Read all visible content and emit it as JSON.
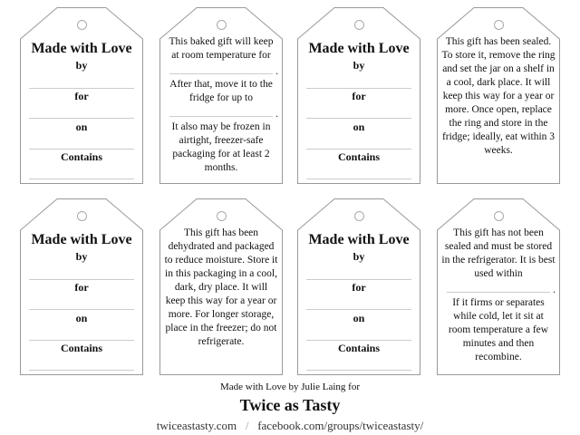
{
  "tags": {
    "love": {
      "title": "Made with Love",
      "by": "by",
      "for": "for",
      "on": "on",
      "contains": "Contains"
    },
    "baked": {
      "p1": "This baked gift will keep at room temperature for",
      "p2": "After that, move it to the fridge for up to",
      "p3": "It also may be frozen in airtight, freezer-safe packaging for at least 2 months.",
      "period": "."
    },
    "sealed": {
      "p1": "This gift has been sealed. To store it, remove the ring and set the jar on a shelf in a cool, dark place. It will keep this way for a year or more. Once open, replace the ring and store in the fridge; ideally, eat within 3 weeks."
    },
    "dehydrated": {
      "p1": "This gift has been dehydrated and packaged to reduce moisture. Store it in this packaging in a cool, dark, dry place. It will keep this way for a year or more. For longer storage, place in the freezer; do not refrigerate."
    },
    "unsealed": {
      "p1": "This gift has not been sealed and must be stored in the refrigerator. It is best used within",
      "p2": "If it firms or separates while cold, let it sit at room temperature a few minutes and then recombine.",
      "period": "."
    }
  },
  "footer": {
    "credit": "Made with Love by Julie Laing for",
    "brand": "Twice as Tasty",
    "website": "twiceastasty.com",
    "separator": "/",
    "facebook": "facebook.com/groups/twiceastasty/"
  }
}
